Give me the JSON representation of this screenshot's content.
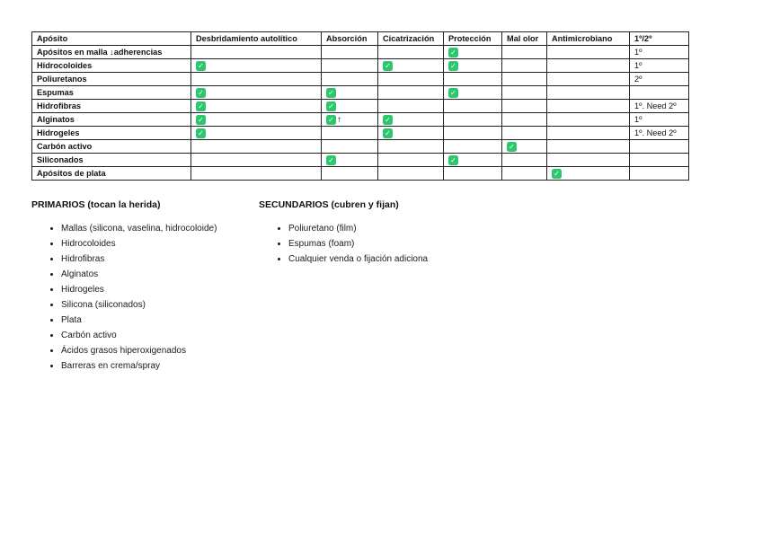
{
  "colors": {
    "check_green": "#2dc86e",
    "check_mark_white": "#ffffff",
    "table_border": "#222222",
    "text": "#111111",
    "page_background": "#ffffff"
  },
  "table": {
    "check_glyph": "✓",
    "up_arrow_glyph": "↑",
    "columns": [
      "Apósito",
      "Desbridamiento autolítico",
      "Absorción",
      "Cicatrización",
      "Protección",
      "Mal olor",
      "Antimicrobiano",
      "1º/2º"
    ],
    "rows": [
      {
        "label": "Apósitos en malla ↓adherencias",
        "cells": [
          "",
          "",
          "",
          "check",
          "",
          ""
        ],
        "priority": "1º"
      },
      {
        "label": "Hidrocoloides",
        "cells": [
          "check",
          "",
          "check",
          "check",
          "",
          ""
        ],
        "priority": "1º"
      },
      {
        "label": "Poliuretanos",
        "cells": [
          "",
          "",
          "",
          "",
          "",
          ""
        ],
        "priority": "2º"
      },
      {
        "label": "Espumas",
        "cells": [
          "check",
          "check",
          "",
          "check",
          "",
          ""
        ],
        "priority": ""
      },
      {
        "label": "Hidrofibras",
        "cells": [
          "check",
          "check",
          "",
          "",
          "",
          ""
        ],
        "priority": "1º. Need 2º"
      },
      {
        "label": "Alginatos",
        "cells": [
          "check",
          "check-up",
          "check",
          "",
          "",
          ""
        ],
        "priority": "1º"
      },
      {
        "label": "Hidrogeles",
        "cells": [
          "check",
          "",
          "check",
          "",
          "",
          ""
        ],
        "priority": "1º. Need 2º"
      },
      {
        "label": "Carbón activo",
        "cells": [
          "",
          "",
          "",
          "",
          "check",
          ""
        ],
        "priority": ""
      },
      {
        "label": "Siliconados",
        "cells": [
          "",
          "check",
          "",
          "check",
          "",
          ""
        ],
        "priority": ""
      },
      {
        "label": "Apósitos de plata",
        "cells": [
          "",
          "",
          "",
          "",
          "",
          "check"
        ],
        "priority": ""
      }
    ]
  },
  "lists": {
    "primary": {
      "title": "PRIMARIOS (tocan la herida)",
      "items": [
        "Mallas (silicona, vaselina, hidrocoloide)",
        "Hidrocoloides",
        "Hidrofibras",
        "Alginatos",
        "Hidrogeles",
        "Silicona (siliconados)",
        "Plata",
        "Carbón activo",
        "Ácidos grasos hiperoxigenados",
        "Barreras en crema/spray"
      ]
    },
    "secondary": {
      "title": "SECUNDARIOS (cubren y fijan)",
      "items": [
        "Poliuretano (film)",
        "Espumas (foam)",
        "Cualquier venda o fijación adiciona"
      ]
    }
  }
}
